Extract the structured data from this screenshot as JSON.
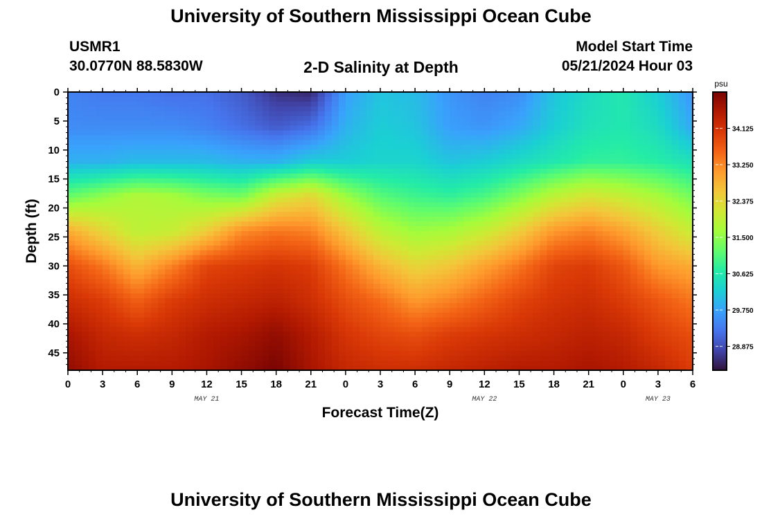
{
  "header": {
    "title": "University of Southern Mississippi Ocean Cube",
    "station_id": "USMR1",
    "station_coords": "30.0770N  88.5830W",
    "subtitle": "2-D Salinity at Depth",
    "model_start_label": "Model Start Time",
    "model_start_value": "05/21/2024 Hour 03"
  },
  "footer": {
    "title": "University of Southern Mississippi Ocean Cube"
  },
  "chart_data": {
    "type": "heatmap",
    "title": "2-D Salinity at Depth",
    "xlabel": "Forecast Time(Z)",
    "ylabel": "Depth (ft)",
    "x_hours": [
      0,
      3,
      6,
      9,
      12,
      15,
      18,
      21,
      24,
      27,
      30,
      33,
      36,
      39,
      42,
      45,
      48,
      51,
      54
    ],
    "x_tick_labels": [
      "0",
      "3",
      "6",
      "9",
      "12",
      "15",
      "18",
      "21",
      "0",
      "3",
      "6",
      "9",
      "12",
      "15",
      "18",
      "21",
      "0",
      "3",
      "6"
    ],
    "date_labels": [
      {
        "text": "MAY 21",
        "hour": 12
      },
      {
        "text": "MAY 22",
        "hour": 36
      },
      {
        "text": "MAY 23",
        "hour": 51
      }
    ],
    "y_ticks": [
      0,
      5,
      10,
      15,
      20,
      25,
      30,
      35,
      40,
      45
    ],
    "y_range_ft": [
      0,
      48
    ],
    "colorbar": {
      "unit": "psu",
      "range": [
        28.3,
        35.0
      ],
      "ticks": [
        "28.875",
        "29.750",
        "30.625",
        "31.500",
        "32.375",
        "33.250",
        "34.125"
      ],
      "palette": [
        "#30123b",
        "#4145ab",
        "#4675ed",
        "#39a2fc",
        "#1bcfd4",
        "#24eca6",
        "#61fc6c",
        "#a4fc3b",
        "#d1e834",
        "#f3c63a",
        "#fe9b2d",
        "#f36315",
        "#d93806",
        "#b11901",
        "#7a0402"
      ]
    },
    "grid_depths_ft": [
      0,
      6,
      12,
      18,
      24,
      30,
      36,
      42,
      48
    ],
    "grid_values": [
      [
        29.4,
        29.3,
        29.3,
        29.2,
        29.2,
        29.0,
        28.6,
        28.5,
        29.7,
        30.1,
        30.0,
        29.6,
        29.4,
        29.5,
        30.1,
        30.4,
        30.6,
        30.2,
        29.6
      ],
      [
        29.5,
        29.5,
        29.5,
        29.5,
        29.4,
        29.2,
        29.0,
        29.2,
        29.9,
        30.2,
        30.1,
        29.7,
        29.6,
        29.8,
        30.2,
        30.5,
        30.6,
        30.4,
        29.8
      ],
      [
        29.9,
        29.9,
        30.0,
        30.0,
        30.0,
        29.9,
        29.9,
        30.2,
        30.2,
        30.3,
        30.3,
        30.1,
        30.2,
        30.4,
        30.6,
        30.8,
        30.8,
        30.7,
        30.5
      ],
      [
        31.2,
        31.5,
        31.8,
        31.7,
        31.4,
        31.3,
        32.1,
        32.4,
        31.6,
        31.1,
        30.9,
        30.8,
        31.0,
        31.4,
        31.9,
        32.2,
        32.0,
        31.7,
        31.3
      ],
      [
        32.9,
        32.4,
        31.9,
        32.0,
        32.5,
        33.2,
        33.4,
        33.3,
        32.6,
        31.9,
        31.6,
        31.7,
        32.0,
        32.5,
        33.1,
        33.3,
        33.0,
        32.5,
        32.0
      ],
      [
        33.8,
        33.4,
        32.8,
        33.3,
        33.9,
        34.0,
        34.1,
        34.0,
        33.4,
        32.8,
        32.4,
        32.6,
        33.0,
        33.4,
        33.9,
        34.0,
        33.7,
        33.1,
        32.9
      ],
      [
        34.2,
        34.0,
        33.6,
        34.0,
        34.2,
        34.3,
        34.4,
        34.2,
        33.8,
        33.5,
        33.1,
        33.3,
        33.6,
        33.9,
        34.1,
        34.2,
        34.0,
        33.7,
        33.4
      ],
      [
        34.6,
        34.3,
        34.2,
        34.3,
        34.5,
        34.6,
        34.8,
        34.5,
        34.1,
        33.9,
        33.8,
        34.0,
        34.1,
        34.2,
        34.3,
        34.4,
        34.3,
        34.0,
        33.8
      ],
      [
        34.8,
        34.5,
        34.5,
        34.5,
        34.6,
        34.8,
        35.0,
        34.6,
        34.3,
        34.2,
        34.2,
        34.3,
        34.4,
        34.5,
        34.5,
        34.6,
        34.5,
        34.3,
        34.0
      ]
    ]
  }
}
